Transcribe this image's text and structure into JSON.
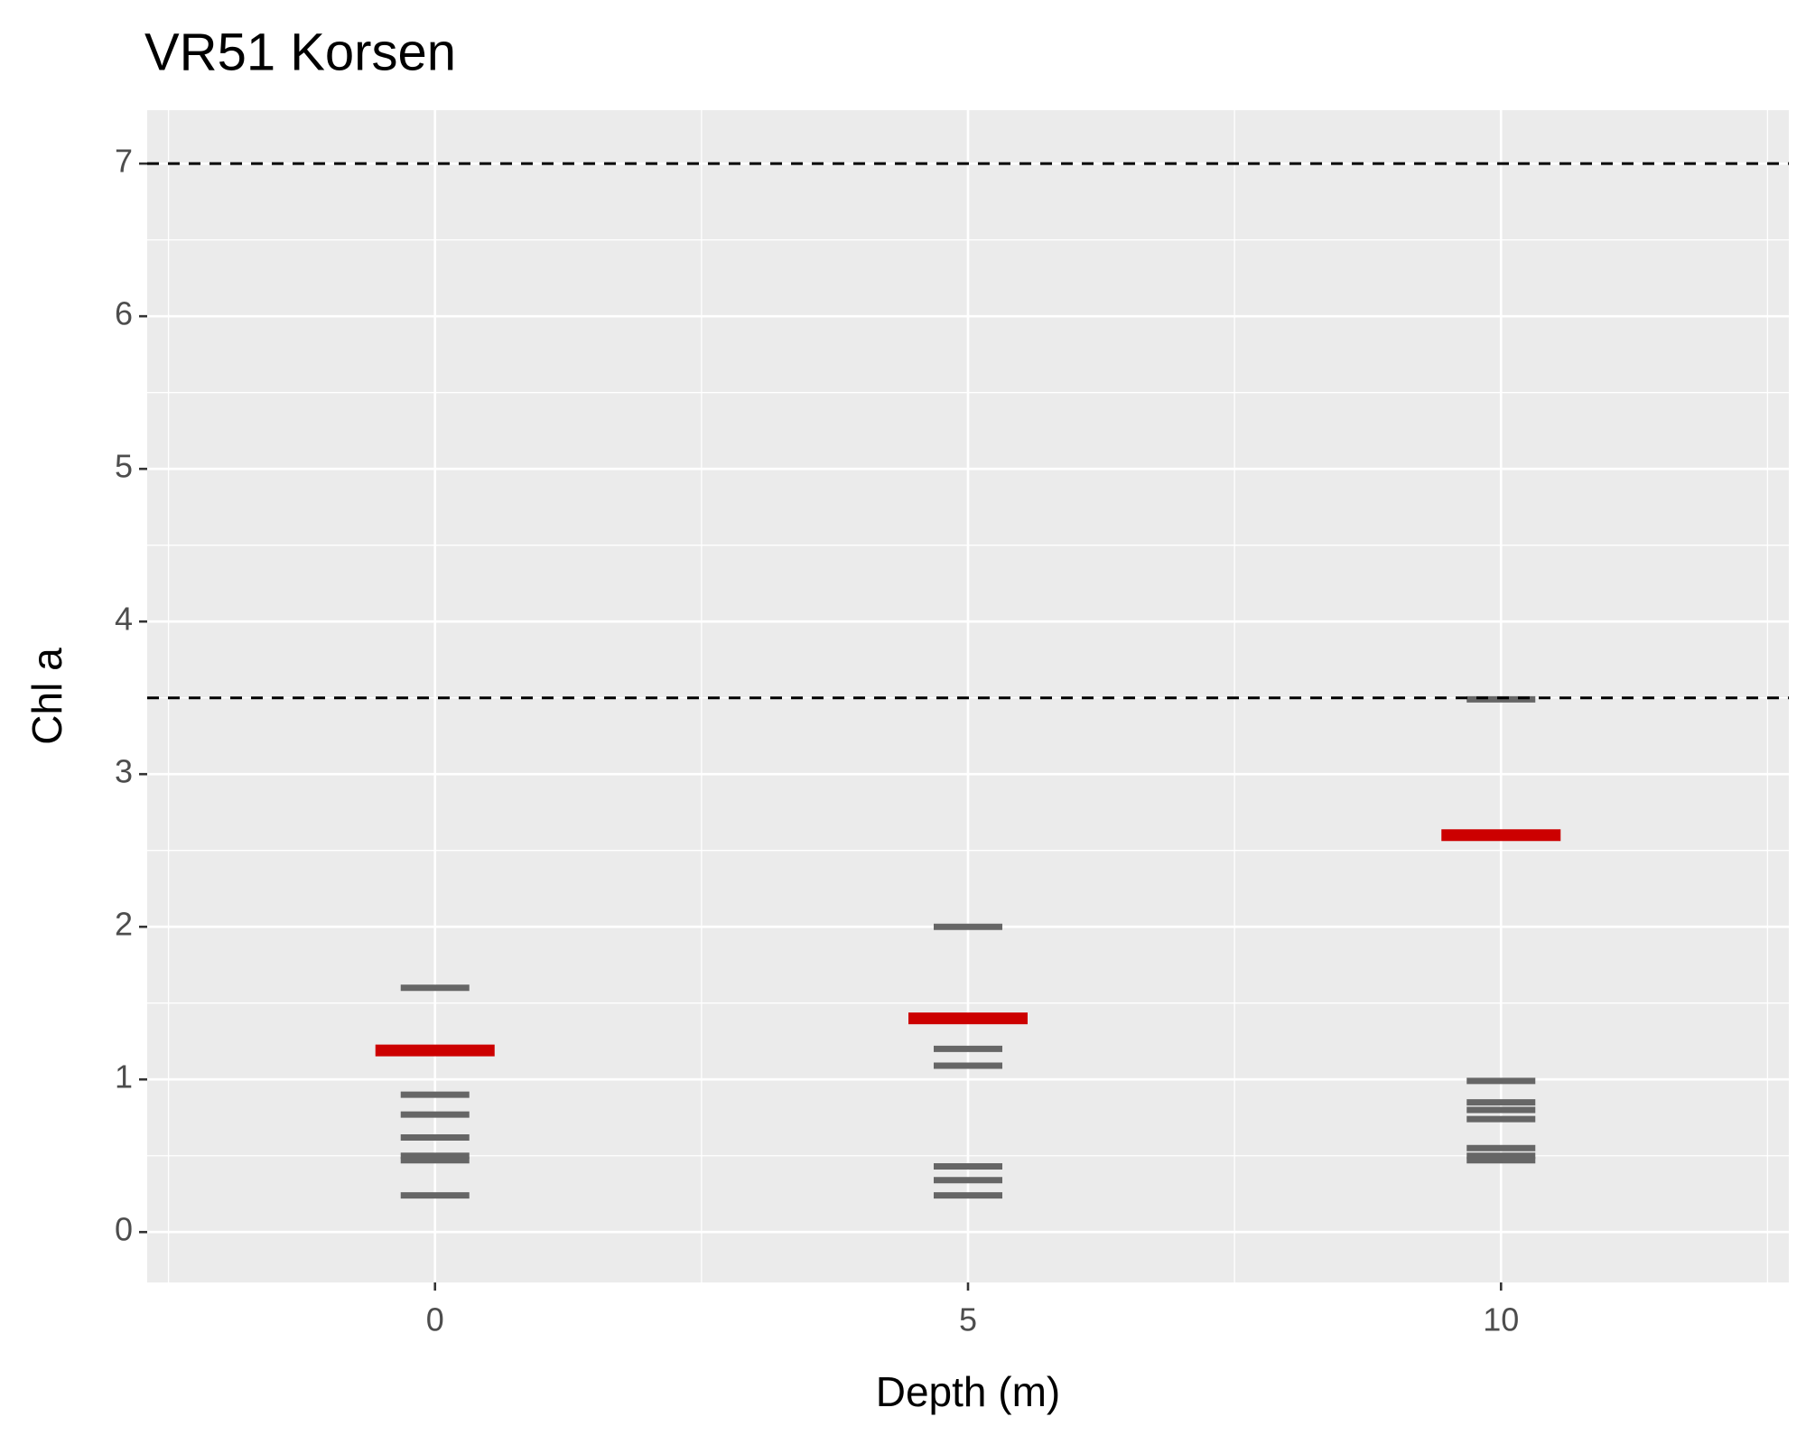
{
  "chart_data": {
    "type": "scatter",
    "marker": "dash",
    "title": "VR51 Korsen",
    "x_label": "Depth (m)",
    "y_label": "Chl a",
    "series": [
      {
        "color": "#666666",
        "x": [
          0,
          0,
          0,
          0,
          0,
          0,
          0,
          5,
          5,
          5,
          5,
          5,
          5,
          10,
          10,
          10,
          10,
          10,
          10,
          10,
          10
        ],
        "values": [
          1.6,
          0.9,
          0.77,
          0.62,
          0.5,
          0.47,
          0.24,
          2.0,
          1.2,
          1.09,
          0.43,
          0.34,
          0.24,
          3.49,
          0.99,
          0.85,
          0.8,
          0.74,
          0.55,
          0.5,
          0.47
        ]
      },
      {
        "color": "#cc0000",
        "x": [
          0,
          5,
          10
        ],
        "values": [
          1.19,
          1.4,
          2.6
        ]
      }
    ],
    "hlines": [
      7,
      3.5
    ],
    "hline_style": "dashed",
    "xlim": [
      -2.7,
      12.7
    ],
    "ylim": [
      -0.33,
      7.35
    ],
    "xticks": [
      0,
      5,
      10
    ],
    "yticks": [
      0,
      1,
      2,
      3,
      4,
      5,
      6,
      7
    ],
    "minor_xticks": [
      -2.5,
      2.5,
      7.5,
      12.5
    ],
    "minor_yticks": [
      0.5,
      1.5,
      2.5,
      3.5,
      4.5,
      5.5,
      6.5
    ],
    "grid": true
  }
}
